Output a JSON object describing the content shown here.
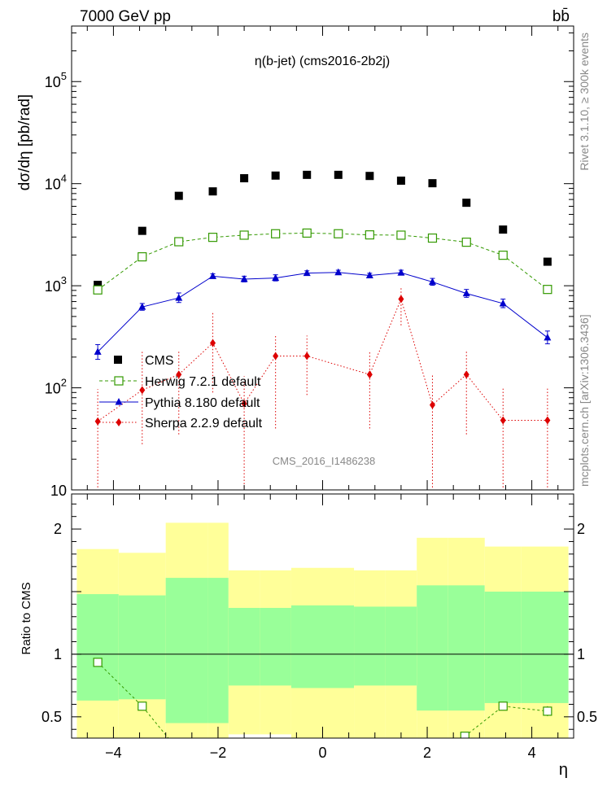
{
  "header": {
    "energy_label": "7000 GeV pp",
    "process_label": "bb̄"
  },
  "side_labels": {
    "rivet": "Rivet 3.1.10, ≥ 300k events",
    "mcplots": "mcplots.cern.ch [arXiv:1306.3436]"
  },
  "chart_data": [
    {
      "type": "scatter",
      "panel": "main",
      "title": "η(b-jet) (cms2016-2b2j)",
      "watermark": "CMS_2016_I1486238",
      "xlabel": "η",
      "ylabel": "dσ/dη [pb/rad]",
      "yscale": "log",
      "xlim": [
        -4.8,
        4.8
      ],
      "ylim": [
        10,
        350000
      ],
      "x_ticks": [
        -4,
        -2,
        0,
        2,
        4
      ],
      "x_tick_labels": [
        "−4",
        "−2",
        "0",
        "2",
        "4"
      ],
      "y_tick_labels": [
        {
          "value": 10,
          "base": "10",
          "exp": ""
        },
        {
          "value": 100,
          "base": "10",
          "exp": "2"
        },
        {
          "value": 1000,
          "base": "10",
          "exp": "3"
        },
        {
          "value": 10000,
          "base": "10",
          "exp": "4"
        },
        {
          "value": 100000,
          "base": "10",
          "exp": "5"
        }
      ],
      "x": [
        -4.3,
        -3.45,
        -2.75,
        -2.1,
        -1.5,
        -0.9,
        -0.3,
        0.3,
        0.9,
        1.5,
        2.1,
        2.75,
        3.45,
        4.3
      ],
      "series": [
        {
          "name": "CMS",
          "style": "data",
          "color": "#000000",
          "values": [
            1020,
            3450,
            7600,
            8400,
            11300,
            12000,
            12200,
            12200,
            11900,
            10700,
            10100,
            6500,
            3550,
            1720
          ]
        },
        {
          "name": "Herwig 7.2.1 default",
          "style": "herwig",
          "color": "#339900",
          "values": [
            910,
            1920,
            2700,
            2980,
            3130,
            3230,
            3280,
            3230,
            3150,
            3130,
            2930,
            2670,
            1990,
            920
          ],
          "err_lo": [
            0,
            0,
            0,
            0,
            0,
            0,
            0,
            0,
            0,
            0,
            0,
            0,
            0,
            0
          ],
          "err_hi": [
            0,
            0,
            0,
            0,
            0,
            0,
            0,
            0,
            0,
            0,
            0,
            0,
            0,
            0
          ]
        },
        {
          "name": "Pythia 8.180 default",
          "style": "pythia",
          "color": "#0000cc",
          "values": [
            225,
            620,
            760,
            1240,
            1160,
            1190,
            1330,
            1350,
            1260,
            1340,
            1090,
            840,
            670,
            310
          ],
          "err_lo": [
            35,
            45,
            75,
            60,
            70,
            75,
            60,
            60,
            55,
            70,
            80,
            70,
            60,
            40
          ],
          "err_hi": [
            40,
            50,
            90,
            70,
            80,
            90,
            70,
            70,
            65,
            80,
            90,
            80,
            70,
            50
          ]
        },
        {
          "name": "Sherpa 2.2.9 default",
          "style": "sherpa",
          "color": "#dd0000",
          "values": [
            47,
            95,
            135,
            275,
            70,
            205,
            205,
            0,
            135,
            740,
            68,
            135,
            48,
            48
          ],
          "err_lo": [
            40,
            67,
            100,
            185,
            60,
            165,
            120,
            0,
            95,
            330,
            58,
            100,
            38,
            38
          ],
          "err_hi": [
            50,
            130,
            95,
            275,
            60,
            120,
            120,
            0,
            95,
            220,
            70,
            95,
            50,
            50
          ]
        }
      ],
      "legend": {
        "position": "middle-left",
        "entries": [
          "CMS",
          "Herwig 7.2.1 default",
          "Pythia 8.180 default",
          "Sherpa 2.2.9 default"
        ]
      }
    },
    {
      "type": "scatter",
      "panel": "ratio",
      "ylabel": "Ratio to CMS",
      "xlabel": "η",
      "xlim": [
        -4.8,
        4.8
      ],
      "ylim": [
        0.33,
        2.28
      ],
      "y_tick_labels": [
        "0.5",
        "1",
        "2"
      ],
      "y_ticks": [
        0.5,
        1,
        2
      ],
      "reference_line": 1,
      "bins": [
        {
          "lo": -4.7,
          "hi": -3.9
        },
        {
          "lo": -3.9,
          "hi": -3.0
        },
        {
          "lo": -3.0,
          "hi": -2.2
        },
        {
          "lo": -2.2,
          "hi": -1.8
        },
        {
          "lo": -1.8,
          "hi": -1.2
        },
        {
          "lo": -1.2,
          "hi": -0.6
        },
        {
          "lo": -0.6,
          "hi": 0.0
        },
        {
          "lo": 0.0,
          "hi": 0.6
        },
        {
          "lo": 0.6,
          "hi": 1.2
        },
        {
          "lo": 1.2,
          "hi": 1.8
        },
        {
          "lo": 1.8,
          "hi": 2.4
        },
        {
          "lo": 2.4,
          "hi": 3.1
        },
        {
          "lo": 3.1,
          "hi": 3.8
        },
        {
          "lo": 3.8,
          "hi": 4.7
        }
      ],
      "band_stat": {
        "lo": [
          0.63,
          0.64,
          0.45,
          0.45,
          0.75,
          0.75,
          0.73,
          0.73,
          0.75,
          0.75,
          0.55,
          0.55,
          0.61,
          0.61
        ],
        "hi": [
          1.48,
          1.47,
          1.61,
          1.61,
          1.37,
          1.37,
          1.39,
          1.39,
          1.38,
          1.38,
          1.55,
          1.55,
          1.5,
          1.5
        ]
      },
      "band_syst": {
        "lo": [
          0.33,
          0.33,
          0.33,
          0.33,
          0.36,
          0.36,
          0.33,
          0.33,
          0.33,
          0.33,
          0.33,
          0.33,
          0.33,
          0.33
        ],
        "hi": [
          1.84,
          1.81,
          2.05,
          2.05,
          1.67,
          1.67,
          1.69,
          1.69,
          1.67,
          1.67,
          1.93,
          1.93,
          1.86,
          1.86
        ]
      },
      "colors": {
        "syst": "#ffff99",
        "stat": "#99ff99",
        "herwig": "#339900"
      },
      "herwig_ratio": {
        "x": [
          -4.3,
          -3.45,
          -2.95,
          2.72,
          3.45,
          4.3
        ],
        "values": [
          0.935,
          0.585,
          0.33,
          0.345,
          0.585,
          0.545
        ],
        "err": [
          0.03,
          0.02,
          0,
          0.015,
          0.02,
          0.04
        ],
        "markers": [
          true,
          true,
          false,
          true,
          true,
          true
        ]
      }
    }
  ]
}
